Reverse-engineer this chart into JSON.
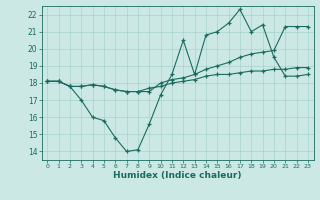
{
  "xlabel": "Humidex (Indice chaleur)",
  "bg_color": "#cce8e4",
  "line_color": "#1a6b60",
  "xlim": [
    -0.5,
    23.5
  ],
  "ylim": [
    13.5,
    22.5
  ],
  "xticks": [
    0,
    1,
    2,
    3,
    4,
    5,
    6,
    7,
    8,
    9,
    10,
    11,
    12,
    13,
    14,
    15,
    16,
    17,
    18,
    19,
    20,
    21,
    22,
    23
  ],
  "yticks": [
    14,
    15,
    16,
    17,
    18,
    19,
    20,
    21,
    22
  ],
  "series1_y": [
    18.1,
    18.1,
    17.8,
    17.0,
    16.0,
    15.8,
    14.8,
    14.0,
    14.1,
    15.6,
    17.3,
    18.5,
    20.5,
    18.5,
    20.8,
    21.0,
    21.5,
    22.3,
    21.0,
    21.4,
    19.5,
    18.4,
    18.4,
    18.5
  ],
  "series2_y": [
    18.1,
    18.1,
    17.8,
    17.8,
    17.9,
    17.8,
    17.6,
    17.5,
    17.5,
    17.7,
    17.8,
    18.0,
    18.1,
    18.2,
    18.4,
    18.5,
    18.5,
    18.6,
    18.7,
    18.7,
    18.8,
    18.8,
    18.9,
    18.9
  ],
  "series3_y": [
    18.1,
    18.1,
    17.8,
    17.8,
    17.9,
    17.8,
    17.6,
    17.5,
    17.5,
    17.5,
    18.0,
    18.2,
    18.3,
    18.5,
    18.8,
    19.0,
    19.2,
    19.5,
    19.7,
    19.8,
    19.9,
    21.3,
    21.3,
    21.3
  ]
}
